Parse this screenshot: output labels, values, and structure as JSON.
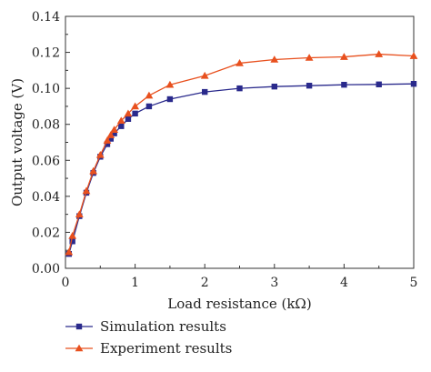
{
  "chart_data": {
    "type": "line",
    "xlabel": "Load resistance (kΩ)",
    "ylabel": "Output voltage (V)",
    "xlim": [
      0,
      5
    ],
    "ylim": [
      0,
      0.14
    ],
    "xticks": [
      "0",
      "1",
      "2",
      "3",
      "4",
      "5"
    ],
    "yticks": [
      "0.00",
      "0.02",
      "0.04",
      "0.06",
      "0.08",
      "0.10",
      "0.12",
      "0.14"
    ],
    "grid": false,
    "legend_position": "bottom",
    "series": [
      {
        "name": "Simulation results",
        "color": "#2a2a8c",
        "marker": "square",
        "x": [
          0.05,
          0.1,
          0.2,
          0.3,
          0.4,
          0.5,
          0.6,
          0.65,
          0.7,
          0.8,
          0.9,
          1.0,
          1.2,
          1.5,
          2.0,
          2.5,
          3.0,
          3.5,
          4.0,
          4.5,
          5.0
        ],
        "y": [
          0.008,
          0.015,
          0.029,
          0.042,
          0.053,
          0.062,
          0.069,
          0.072,
          0.075,
          0.079,
          0.083,
          0.086,
          0.09,
          0.094,
          0.098,
          0.1,
          0.101,
          0.1015,
          0.102,
          0.1022,
          0.1025
        ]
      },
      {
        "name": "Experiment results",
        "color": "#e8501e",
        "marker": "triangle",
        "x": [
          0.05,
          0.1,
          0.2,
          0.3,
          0.4,
          0.5,
          0.6,
          0.65,
          0.7,
          0.8,
          0.9,
          1.0,
          1.2,
          1.5,
          2.0,
          2.5,
          3.0,
          3.5,
          4.0,
          4.5,
          5.0
        ],
        "y": [
          0.009,
          0.018,
          0.03,
          0.043,
          0.054,
          0.063,
          0.071,
          0.074,
          0.077,
          0.082,
          0.086,
          0.09,
          0.096,
          0.102,
          0.107,
          0.114,
          0.116,
          0.117,
          0.1175,
          0.119,
          0.118
        ]
      }
    ]
  }
}
